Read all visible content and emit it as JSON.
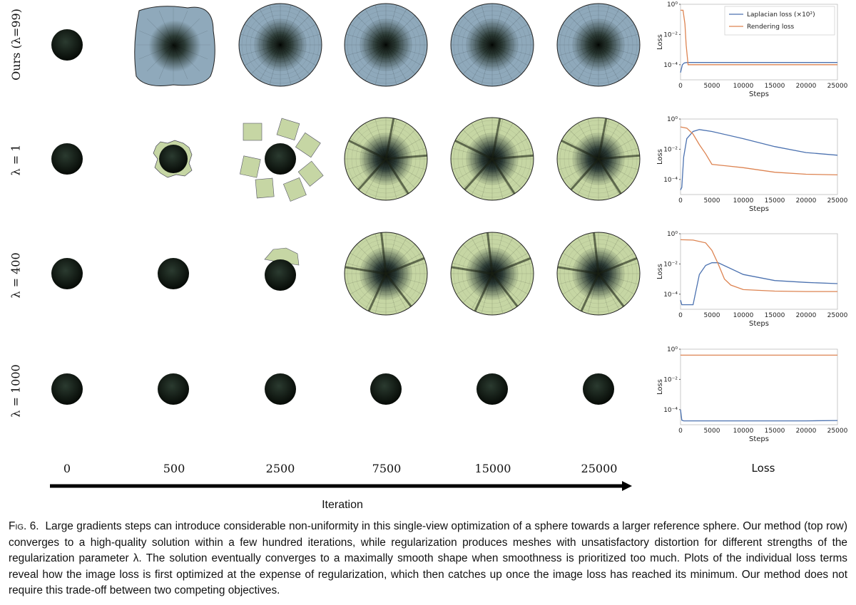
{
  "rows": [
    {
      "label": "Ours (λ=99)",
      "style": "blue",
      "stages": [
        "small",
        "blob",
        "disk",
        "disk",
        "disk",
        "disk"
      ]
    },
    {
      "label": "λ = 1",
      "style": "green",
      "stages": [
        "small",
        "rough",
        "patches",
        "disk",
        "disk",
        "disk"
      ]
    },
    {
      "label": "λ = 400",
      "style": "green",
      "stages": [
        "small",
        "small",
        "lumpy",
        "disk",
        "disk",
        "disk"
      ]
    },
    {
      "label": "λ = 1000",
      "style": "dark",
      "stages": [
        "small",
        "small",
        "small",
        "small",
        "small",
        "small"
      ]
    }
  ],
  "iterations": [
    "0",
    "500",
    "2500",
    "7500",
    "15000",
    "25000"
  ],
  "loss_column_label": "Loss",
  "x_axis_label": "Iteration",
  "colors": {
    "laplacian": "#4c72b0",
    "rendering": "#dd8452",
    "blue_mesh": "#8fa9bb",
    "green_mesh": "#c6d6a4",
    "dark": "#0d130c"
  },
  "chart_data": [
    {
      "type": "line",
      "xlabel": "Steps",
      "ylabel": "Loss",
      "log_y": true,
      "ylim": [
        1e-05,
        1
      ],
      "yticks": [
        "10⁰",
        "10⁻²",
        "10⁻⁴"
      ],
      "xticks": [
        "0",
        "5000",
        "10000",
        "15000",
        "20000",
        "25000"
      ],
      "legend": [
        "Laplacian loss (×10²)",
        "Rendering loss"
      ],
      "legend_position": "top-right",
      "series": [
        {
          "name": "Laplacian loss (×10²)",
          "x": [
            0,
            300,
            600,
            1000,
            2000,
            5000,
            10000,
            15000,
            20000,
            25000
          ],
          "y": [
            3e-05,
            0.0001,
            0.00013,
            0.00014,
            0.00014,
            0.00014,
            0.00014,
            0.00014,
            0.00014,
            0.00014
          ]
        },
        {
          "name": "Rendering loss",
          "x": [
            0,
            400,
            700,
            900,
            1200,
            2000,
            5000,
            10000,
            15000,
            20000,
            25000
          ],
          "y": [
            0.4,
            0.4,
            0.05,
            0.002,
            0.0001,
            0.0001,
            0.0001,
            0.0001,
            0.0001,
            0.0001,
            0.0001
          ]
        }
      ]
    },
    {
      "type": "line",
      "xlabel": "Steps",
      "ylabel": "Loss",
      "log_y": true,
      "ylim": [
        1e-05,
        1
      ],
      "yticks": [
        "10⁰",
        "10⁻²",
        "10⁻⁴"
      ],
      "xticks": [
        "0",
        "5000",
        "10000",
        "15000",
        "20000",
        "25000"
      ],
      "series": [
        {
          "name": "Laplacian loss (×10²)",
          "x": [
            0,
            200,
            500,
            1000,
            2000,
            3000,
            5000,
            10000,
            15000,
            20000,
            25000
          ],
          "y": [
            2e-05,
            3e-05,
            0.003,
            0.05,
            0.15,
            0.2,
            0.15,
            0.05,
            0.015,
            0.006,
            0.004
          ]
        },
        {
          "name": "Rendering loss",
          "x": [
            0,
            1000,
            2000,
            3000,
            4000,
            5000,
            10000,
            15000,
            20000,
            25000
          ],
          "y": [
            0.3,
            0.25,
            0.1,
            0.02,
            0.005,
            0.001,
            0.0006,
            0.0003,
            0.00022,
            0.0002
          ]
        }
      ]
    },
    {
      "type": "line",
      "xlabel": "Steps",
      "ylabel": "Loss",
      "log_y": true,
      "ylim": [
        1e-05,
        1
      ],
      "yticks": [
        "10⁰",
        "10⁻²",
        "10⁻⁴"
      ],
      "xticks": [
        "0",
        "5000",
        "10000",
        "15000",
        "20000",
        "25000"
      ],
      "series": [
        {
          "name": "Laplacian loss (×10²)",
          "x": [
            0,
            200,
            1000,
            2000,
            2500,
            3000,
            4000,
            5000,
            6000,
            10000,
            15000,
            20000,
            25000
          ],
          "y": [
            4e-05,
            2e-05,
            2e-05,
            2e-05,
            0.0002,
            0.002,
            0.008,
            0.012,
            0.012,
            0.002,
            0.0008,
            0.0006,
            0.0005
          ]
        },
        {
          "name": "Rendering loss",
          "x": [
            0,
            2000,
            4000,
            5000,
            6000,
            7000,
            8000,
            10000,
            15000,
            20000,
            25000
          ],
          "y": [
            0.4,
            0.38,
            0.25,
            0.08,
            0.01,
            0.001,
            0.0004,
            0.0002,
            0.00016,
            0.00015,
            0.00015
          ]
        }
      ]
    },
    {
      "type": "line",
      "xlabel": "Steps",
      "ylabel": "Loss",
      "log_y": true,
      "ylim": [
        1e-05,
        1
      ],
      "yticks": [
        "10⁰",
        "10⁻²",
        "10⁻⁴"
      ],
      "xticks": [
        "0",
        "5000",
        "10000",
        "15000",
        "20000",
        "25000"
      ],
      "series": [
        {
          "name": "Laplacian loss (×10²)",
          "x": [
            0,
            200,
            500,
            5000,
            10000,
            15000,
            20000,
            25000
          ],
          "y": [
            0.0001,
            2e-05,
            1.8e-05,
            1.8e-05,
            1.8e-05,
            1.8e-05,
            1.8e-05,
            1.9e-05
          ]
        },
        {
          "name": "Rendering loss",
          "x": [
            0,
            5000,
            10000,
            15000,
            20000,
            25000
          ],
          "y": [
            0.4,
            0.4,
            0.4,
            0.4,
            0.4,
            0.4
          ]
        }
      ]
    }
  ],
  "caption": {
    "fig": "Fig. 6.",
    "text": "Large gradients steps can introduce considerable non-uniformity in this single-view optimization of a sphere towards a larger reference sphere. Our method (top row) converges to a high-quality solution within a few hundred iterations, while regularization produces meshes with unsatisfactory distortion for different strengths of the regularization parameter λ. The solution eventually converges to a maximally smooth shape when smoothness is prioritized too much. Plots of the individual loss terms reveal how the image loss is first optimized at the expense of regularization, which then catches up once the image loss has reached its minimum. Our method does not require this trade-off between two competing objectives."
  }
}
